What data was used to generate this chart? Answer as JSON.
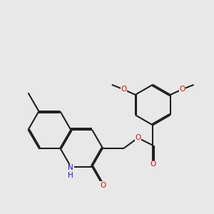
{
  "background_color": "#e8e8e8",
  "bond_color": "#202020",
  "bond_lw": 1.5,
  "dbo": 0.055,
  "atom_colors": {
    "N": "#1111bb",
    "O": "#cc1111"
  },
  "font_size": 7.5,
  "fig_size": [
    3.0,
    3.0
  ],
  "dpi": 100
}
